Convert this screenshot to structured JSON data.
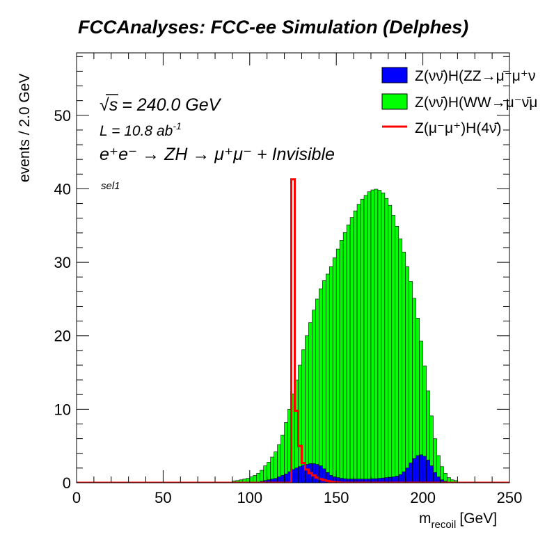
{
  "header": {
    "title": "FCCAnalyses: FCC-ee Simulation (Delphes)"
  },
  "chart_data": {
    "type": "bar",
    "style": "stacked-histogram-with-overlay",
    "xlabel": "m",
    "xlabel_sub": "recoil",
    "xlabel_unit": "[GeV]",
    "ylabel": "events / 2.0 GeV",
    "xlim": [
      0,
      250
    ],
    "ylim": [
      0,
      58.5
    ],
    "bin_width": 2.0,
    "x_ticks": [
      "0",
      "50",
      "100",
      "150",
      "200",
      "250"
    ],
    "y_ticks": [
      "0",
      "10",
      "20",
      "30",
      "40",
      "50"
    ],
    "grid": false,
    "legend_position": "top-right",
    "annotations": {
      "sqrt_s": "s",
      "energy": "= 240.0 GeV",
      "lumi_prefix": "L = 10.8 ab",
      "lumi_exp": "-1",
      "process": "e⁺e⁻ → ZH → μ⁺μ⁻ + Invisible",
      "selection": "sel1"
    },
    "series": [
      {
        "name": "Z(νν̄)H(ZZ→μ⁻μ⁺ν",
        "color": "#0000ff",
        "stack_order": 1,
        "x_start": 90,
        "values": [
          0.1,
          0.1,
          0.1,
          0.1,
          0.1,
          0.1,
          0.1,
          0.1,
          0.2,
          0.3,
          0.4,
          0.5,
          0.6,
          0.8,
          1.0,
          1.2,
          1.5,
          1.8,
          2.0,
          2.2,
          2.4,
          2.5,
          2.6,
          2.6,
          2.5,
          2.3,
          1.9,
          1.4,
          1.0,
          0.8,
          0.7,
          0.6,
          0.55,
          0.5,
          0.5,
          0.5,
          0.5,
          0.5,
          0.5,
          0.5,
          0.55,
          0.55,
          0.6,
          0.65,
          0.7,
          0.75,
          0.8,
          0.9,
          1.1,
          1.5,
          2.0,
          2.7,
          3.3,
          3.7,
          3.8,
          3.6,
          3.1,
          2.3,
          1.4,
          0.8,
          0.4,
          0.2,
          0.1,
          0.1,
          0.1
        ]
      },
      {
        "name": "Z(νν̄)H(WW→μ⁻ν̄μ",
        "color": "#00ff00",
        "stack_order": 2,
        "x_start": 80,
        "values": [
          0.05,
          0.05,
          0.05,
          0.1,
          0.1,
          0.15,
          0.2,
          0.3,
          0.4,
          0.5,
          0.7,
          0.9,
          1.2,
          1.5,
          2.0,
          2.4,
          3.0,
          3.6,
          4.4,
          5.5,
          7.0,
          8.5,
          10.3,
          12.0,
          13.8,
          15.7,
          17.5,
          19.2,
          20.9,
          22.5,
          24.1,
          25.6,
          27.0,
          28.4,
          29.8,
          31.1,
          32.4,
          33.5,
          34.6,
          35.6,
          36.5,
          37.4,
          38.1,
          38.6,
          39.1,
          39.3,
          39.4,
          39.2,
          38.8,
          38.0,
          37.0,
          35.6,
          34.0,
          32.1,
          29.9,
          27.4,
          24.7,
          21.8,
          18.7,
          15.5,
          12.3,
          9.4,
          6.8,
          4.6,
          2.9,
          1.8,
          1.1,
          0.6,
          0.3,
          0.2,
          0.1,
          0.05,
          0.05,
          0.0
        ]
      },
      {
        "name": "Z(μ⁻μ⁺)H(4ν̄)",
        "color": "#ff0000",
        "style": "step-line",
        "x_start": 124,
        "values": [
          41.3,
          9.8,
          5.0,
          2.7,
          1.8,
          1.3,
          1.0,
          0.7,
          0.5,
          0.35,
          0.25,
          0.15,
          0.1,
          0.05
        ]
      }
    ]
  }
}
